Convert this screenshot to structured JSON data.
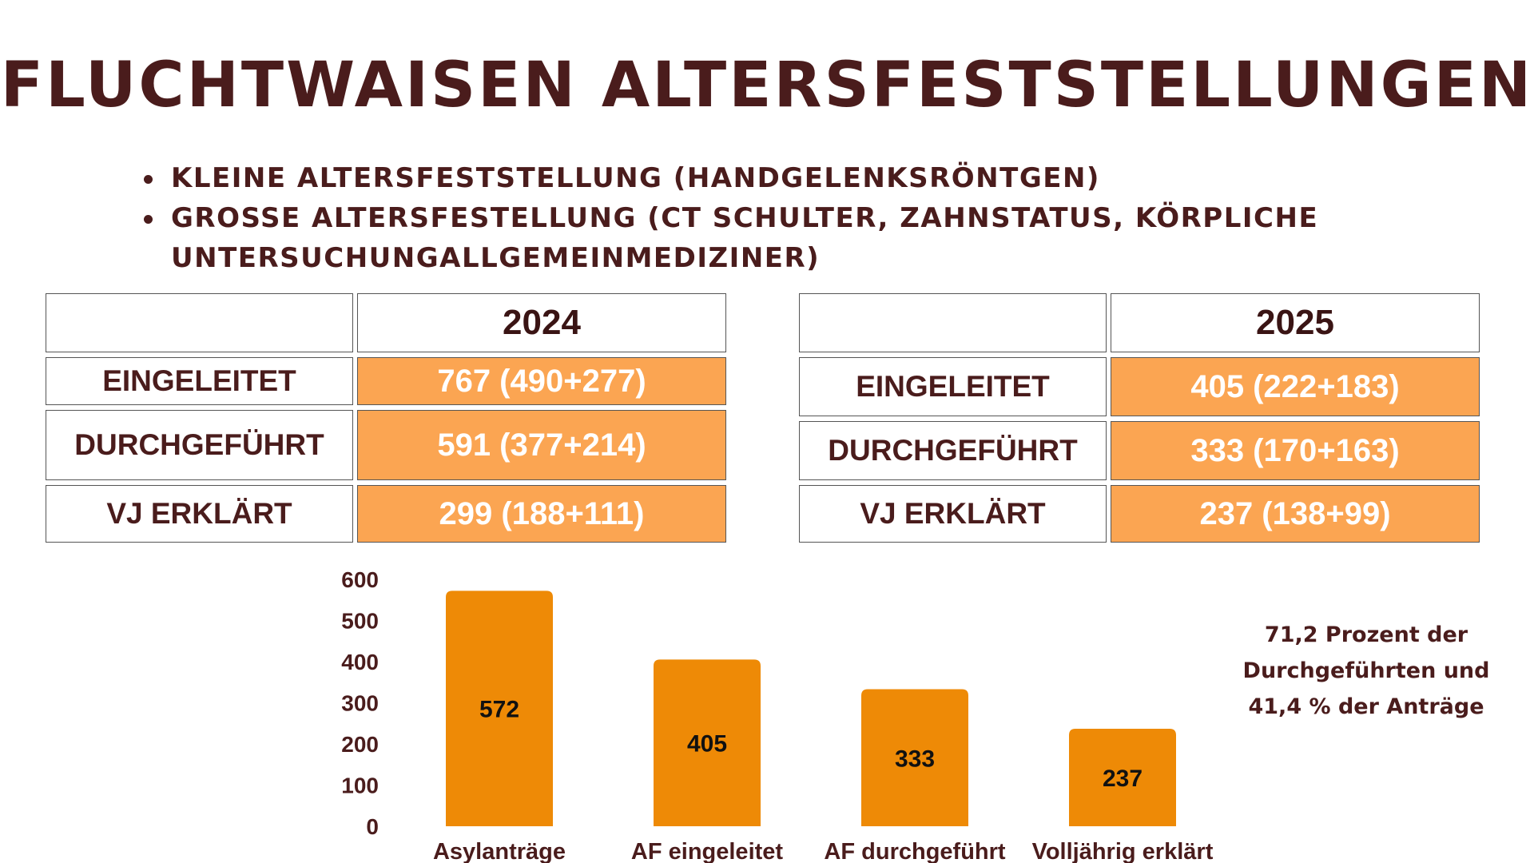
{
  "title": "FLUCHTWAISEN ALTERSFESTSTELLUNGEN",
  "bullets": [
    "KLEINE ALTERSFESTSTELLUNG (HANDGELENKSRÖNTGEN)",
    "GROSSE ALTERSFESTELLUNG (CT SCHULTER, ZAHNSTATUS, KÖRPLICHE UNTERSUCHUNGALLGEMEINMEDIZINER)"
  ],
  "table_2024": {
    "year": "2024",
    "rows": [
      {
        "label": "EINGELEITET",
        "value": "767 (490+277)"
      },
      {
        "label": "DURCHGEFÜHRT",
        "value": "591 (377+214)"
      },
      {
        "label": "VJ ERKLÄRT",
        "value": "299 (188+111)"
      }
    ]
  },
  "table_2025": {
    "year": "2025",
    "rows": [
      {
        "label": "EINGELEITET",
        "value": "405 (222+183)"
      },
      {
        "label": "DURCHGEFÜHRT",
        "value": "333 (170+163)"
      },
      {
        "label": "VJ ERKLÄRT",
        "value": "237 (138+99)"
      }
    ]
  },
  "note": {
    "line1": "71,2 Prozent der",
    "line2": "Durchgeführten und",
    "line3": "41,4 % der Anträge"
  },
  "colors": {
    "title": "#4a1c1c",
    "bar": "#ee8a06",
    "table_value_fill": "#fba552"
  },
  "chart_data": {
    "type": "bar",
    "categories": [
      "Asylanträge",
      "AF eingeleitet",
      "AF durchgeführt",
      "Volljährig erklärt"
    ],
    "values": [
      572,
      405,
      333,
      237
    ],
    "data_labels": [
      "572",
      "405",
      "333",
      "237"
    ],
    "yticks": [
      "0",
      "100",
      "200",
      "300",
      "400",
      "500",
      "600"
    ],
    "ylim": [
      0,
      600
    ],
    "grid": false,
    "legend": "none"
  }
}
